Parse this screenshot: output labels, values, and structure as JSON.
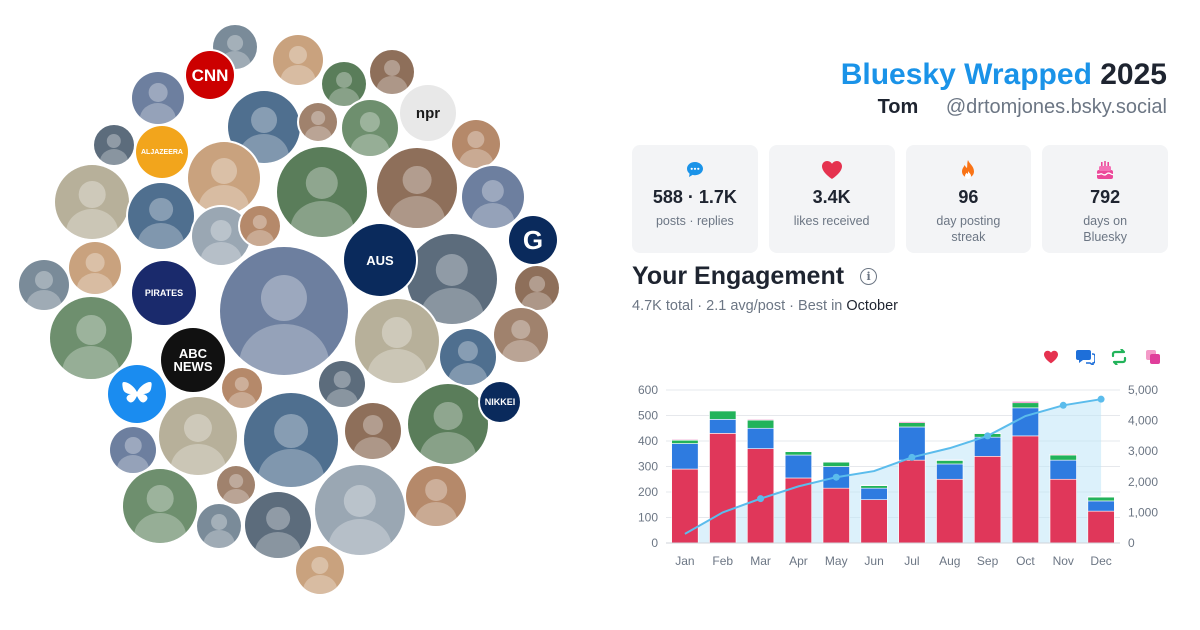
{
  "header": {
    "brand": "Bluesky Wrapped",
    "year": "2025",
    "display_name": "Tom",
    "handle": "@drtomjones.bsky.social"
  },
  "stats": [
    {
      "value": "588 · 1.7K",
      "label": "posts · replies",
      "icon": "speech-bubble-icon",
      "color": "#1a93e8"
    },
    {
      "value": "3.4K",
      "label": "likes received",
      "icon": "heart-icon",
      "color": "#e5324f"
    },
    {
      "value": "96",
      "label": "day posting streak",
      "icon": "flame-icon",
      "color": "#f97316"
    },
    {
      "value": "792",
      "label": "days on Bluesky",
      "icon": "cake-icon",
      "color": "#ec4899"
    }
  ],
  "engagement": {
    "title": "Your Engagement",
    "summary": "4.7K total · 2.1 avg/post · Best in ",
    "best_month": "October"
  },
  "legend_icons": [
    {
      "icon": "heart-icon",
      "color": "#e5324f"
    },
    {
      "icon": "reply-icon",
      "color": "#1e6fd9"
    },
    {
      "icon": "repost-icon",
      "color": "#22b35a"
    },
    {
      "icon": "quote-icon",
      "color": "#e03e9b"
    }
  ],
  "avatars": [
    {
      "label": "CNN",
      "bg": "#cc0000"
    },
    {
      "label": "npr",
      "bg": "#e8e8e8"
    },
    {
      "label": "AUS",
      "bg": "#0a2a5c"
    },
    {
      "label": "G",
      "bg": "#0a2a5c"
    },
    {
      "label": "ABC NEWS",
      "bg": "#111111"
    },
    {
      "label": "NIKKEI",
      "bg": "#0a2a5c"
    },
    {
      "label": "PIRATES",
      "bg": "#1a2a6c"
    },
    {
      "label": "ALJAZEERA",
      "bg": "#f2a51c"
    }
  ],
  "chart_data": {
    "type": "bar",
    "stacked": true,
    "categories": [
      "Jan",
      "Feb",
      "Mar",
      "Apr",
      "May",
      "Jun",
      "Jul",
      "Aug",
      "Sep",
      "Oct",
      "Nov",
      "Dec"
    ],
    "series": [
      {
        "name": "Likes",
        "color": "#e0375a",
        "values": [
          290,
          430,
          370,
          255,
          215,
          170,
          325,
          250,
          340,
          420,
          250,
          125
        ]
      },
      {
        "name": "Replies",
        "color": "#2e7be0",
        "values": [
          100,
          55,
          80,
          90,
          85,
          45,
          130,
          60,
          75,
          110,
          75,
          40
        ]
      },
      {
        "name": "Reposts",
        "color": "#22b35a",
        "values": [
          13,
          33,
          32,
          13,
          17,
          10,
          17,
          14,
          14,
          20,
          20,
          15
        ]
      },
      {
        "name": "Quotes",
        "color": "#e03e9b",
        "values": [
          3,
          2,
          3,
          2,
          2,
          2,
          4,
          2,
          2,
          5,
          3,
          2
        ]
      }
    ],
    "cumulative": {
      "values": [
        300,
        1000,
        1450,
        1850,
        2150,
        2350,
        2800,
        3100,
        3500,
        4150,
        4500,
        4700
      ],
      "color": "#5bbcec"
    },
    "ylim_left": [
      0,
      600
    ],
    "yticks_left": [
      "0",
      "100",
      "200",
      "300",
      "400",
      "500",
      "600"
    ],
    "ylim_right": [
      0,
      5000
    ],
    "yticks_right": [
      "0",
      "1,000",
      "2,000",
      "3,000",
      "4,000",
      "5,000"
    ],
    "grid": true
  }
}
